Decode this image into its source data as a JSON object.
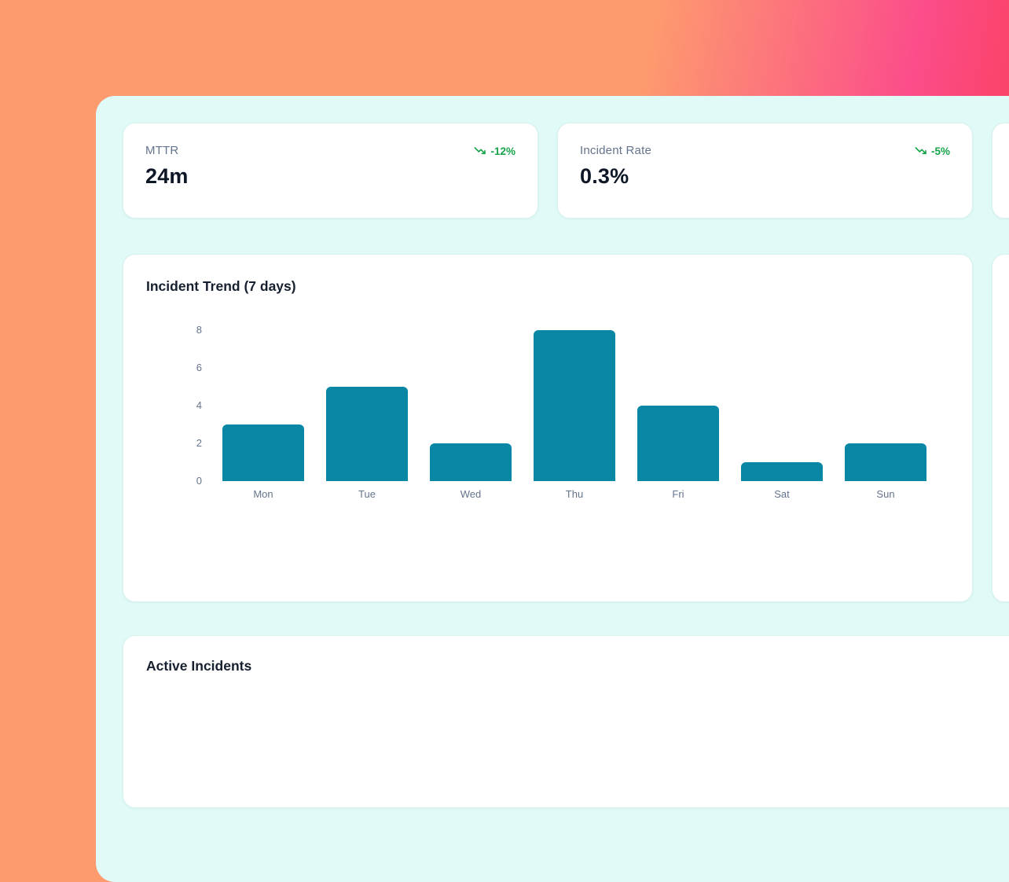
{
  "kpis": [
    {
      "label": "MTTR",
      "value": "24m",
      "trend": "-12%"
    },
    {
      "label": "Incident Rate",
      "value": "0.3%",
      "trend": "-5%"
    }
  ],
  "chart_data": {
    "type": "bar",
    "title": "Incident Trend (7 days)",
    "categories": [
      "Mon",
      "Tue",
      "Wed",
      "Thu",
      "Fri",
      "Sat",
      "Sun"
    ],
    "values": [
      3,
      5,
      2,
      8,
      4,
      1,
      2
    ],
    "yticks": [
      0,
      2,
      4,
      6,
      8
    ],
    "ylim": [
      0,
      8
    ],
    "grid": false,
    "legend": "none",
    "xlabel": "",
    "ylabel": "",
    "bar_color": "#0b87a6"
  },
  "sections": {
    "active_incidents_title": "Active Incidents"
  },
  "colors": {
    "background_gradient_start": "#fd9b6e",
    "background_gradient_mid": "#fb4d8a",
    "background_gradient_end": "#fd4350",
    "panel_background": "#e0faf7",
    "card_background": "#ffffff",
    "bar_color": "#0b87a6",
    "trend_green": "#16a34a",
    "text_primary": "#0e1726",
    "text_muted": "#64748b"
  }
}
